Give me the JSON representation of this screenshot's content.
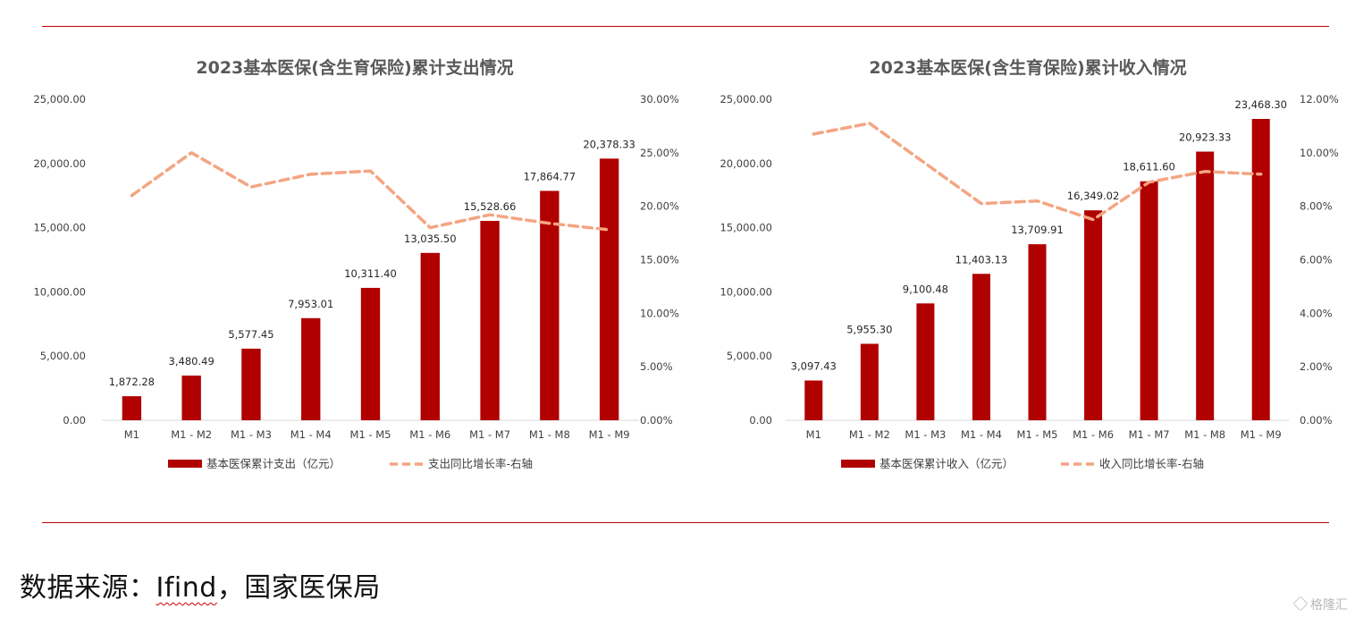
{
  "source_text": {
    "prefix": "数据来源：",
    "underlined": "Ifind",
    "suffix": "，国家医保局"
  },
  "watermark": "格隆汇",
  "colors": {
    "bar": "#b00000",
    "line": "#f4a582",
    "rule": "#c00000",
    "gridline": "#d9d9d9"
  },
  "chart_data": [
    {
      "type": "bar",
      "title": "2023基本医保(含生育保险)累计支出情况",
      "categories": [
        "M1",
        "M1 - M2",
        "M1 - M3",
        "M1 - M4",
        "M1 - M5",
        "M1 - M6",
        "M1 - M7",
        "M1 - M8",
        "M1 - M9"
      ],
      "series": [
        {
          "name": "基本医保累计支出（亿元）",
          "type": "bar",
          "axis": "left",
          "values": [
            1872.28,
            3480.49,
            5577.45,
            7953.01,
            10311.4,
            13035.5,
            15528.66,
            17864.77,
            20378.33
          ],
          "labels": [
            "1,872.28",
            "3,480.49",
            "5,577.45",
            "7,953.01",
            "10,311.40",
            "13,035.50",
            "15,528.66",
            "17,864.77",
            "20,378.33"
          ]
        },
        {
          "name": "支出同比增长率-右轴",
          "type": "line",
          "style": "dashed",
          "axis": "right",
          "values": [
            21.0,
            25.0,
            21.8,
            23.0,
            23.3,
            18.0,
            19.2,
            18.4,
            17.8
          ]
        }
      ],
      "ylim": [
        0,
        25000
      ],
      "yticks": [
        "0.00",
        "5,000.00",
        "10,000.00",
        "15,000.00",
        "20,000.00",
        "25,000.00"
      ],
      "y2lim": [
        0,
        30
      ],
      "y2ticks": [
        "0.00%",
        "5.00%",
        "10.00%",
        "15.00%",
        "20.00%",
        "25.00%",
        "30.00%"
      ],
      "legend": "bottom",
      "grid": false
    },
    {
      "type": "bar",
      "title": "2023基本医保(含生育保险)累计收入情况",
      "categories": [
        "M1",
        "M1 - M2",
        "M1 - M3",
        "M1 - M4",
        "M1 - M5",
        "M1 - M6",
        "M1 - M7",
        "M1 - M8",
        "M1 - M9"
      ],
      "series": [
        {
          "name": "基本医保累计收入（亿元）",
          "type": "bar",
          "axis": "left",
          "values": [
            3097.43,
            5955.3,
            9100.48,
            11403.13,
            13709.91,
            16349.02,
            18611.6,
            20923.33,
            23468.3
          ],
          "labels": [
            "3,097.43",
            "5,955.30",
            "9,100.48",
            "11,403.13",
            "13,709.91",
            "16,349.02",
            "18,611.60",
            "20,923.33",
            "23,468.30"
          ]
        },
        {
          "name": "收入同比增长率-右轴",
          "type": "line",
          "style": "dashed",
          "axis": "right",
          "values": [
            10.7,
            11.1,
            9.6,
            8.1,
            8.2,
            7.5,
            8.9,
            9.3,
            9.2
          ]
        }
      ],
      "ylim": [
        0,
        25000
      ],
      "yticks": [
        "0.00",
        "5,000.00",
        "10,000.00",
        "15,000.00",
        "20,000.00",
        "25,000.00"
      ],
      "y2lim": [
        0,
        12
      ],
      "y2ticks": [
        "0.00%",
        "2.00%",
        "4.00%",
        "6.00%",
        "8.00%",
        "10.00%",
        "12.00%"
      ],
      "legend": "bottom",
      "grid": false
    }
  ]
}
